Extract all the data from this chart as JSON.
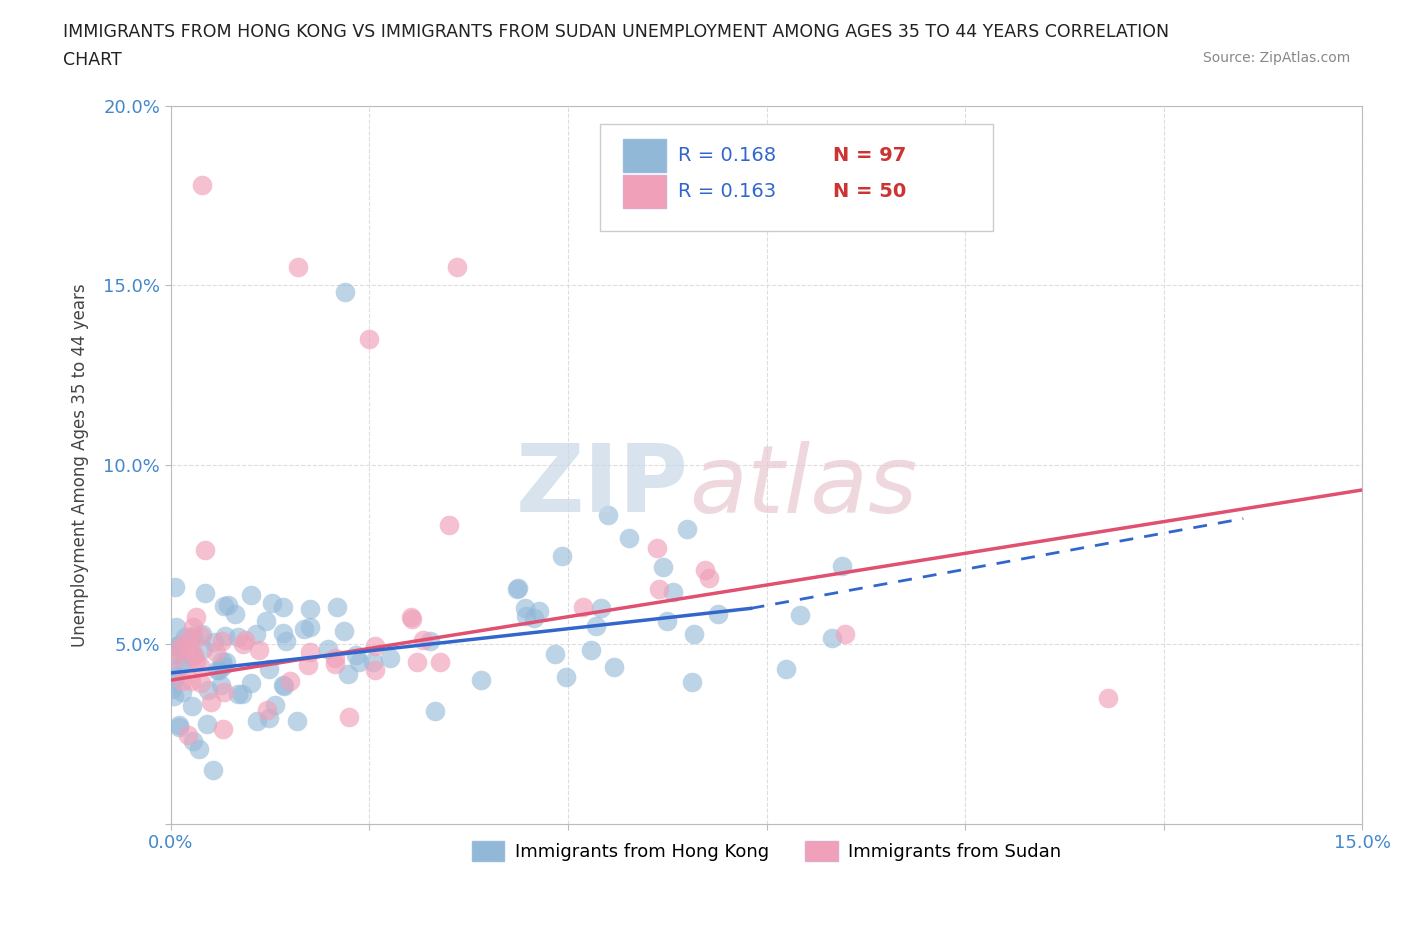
{
  "title_line1": "IMMIGRANTS FROM HONG KONG VS IMMIGRANTS FROM SUDAN UNEMPLOYMENT AMONG AGES 35 TO 44 YEARS CORRELATION",
  "title_line2": "CHART",
  "source": "Source: ZipAtlas.com",
  "ylabel": "Unemployment Among Ages 35 to 44 years",
  "xlim": [
    0.0,
    0.15
  ],
  "ylim": [
    0.0,
    0.2
  ],
  "xticks": [
    0.0,
    0.025,
    0.05,
    0.075,
    0.1,
    0.125,
    0.15
  ],
  "yticks": [
    0.0,
    0.05,
    0.1,
    0.15,
    0.2
  ],
  "xticklabels": [
    "0.0%",
    "",
    "",
    "",
    "",
    "",
    "15.0%"
  ],
  "yticklabels": [
    "",
    "5.0%",
    "10.0%",
    "15.0%",
    "20.0%"
  ],
  "hk_color": "#92b8d8",
  "sudan_color": "#f0a0b8",
  "hk_line_color": "#3366cc",
  "sudan_line_color": "#e05070",
  "hk_R": 0.168,
  "hk_N": 97,
  "sudan_R": 0.163,
  "sudan_N": 50,
  "background_color": "#ffffff",
  "grid_color": "#dddddd",
  "legend_R_color": "#3366cc",
  "legend_N_color": "#cc3333",
  "tick_color": "#4488cc",
  "watermark_zip_color": "#c8d8e8",
  "watermark_atlas_color": "#e8c8d0"
}
